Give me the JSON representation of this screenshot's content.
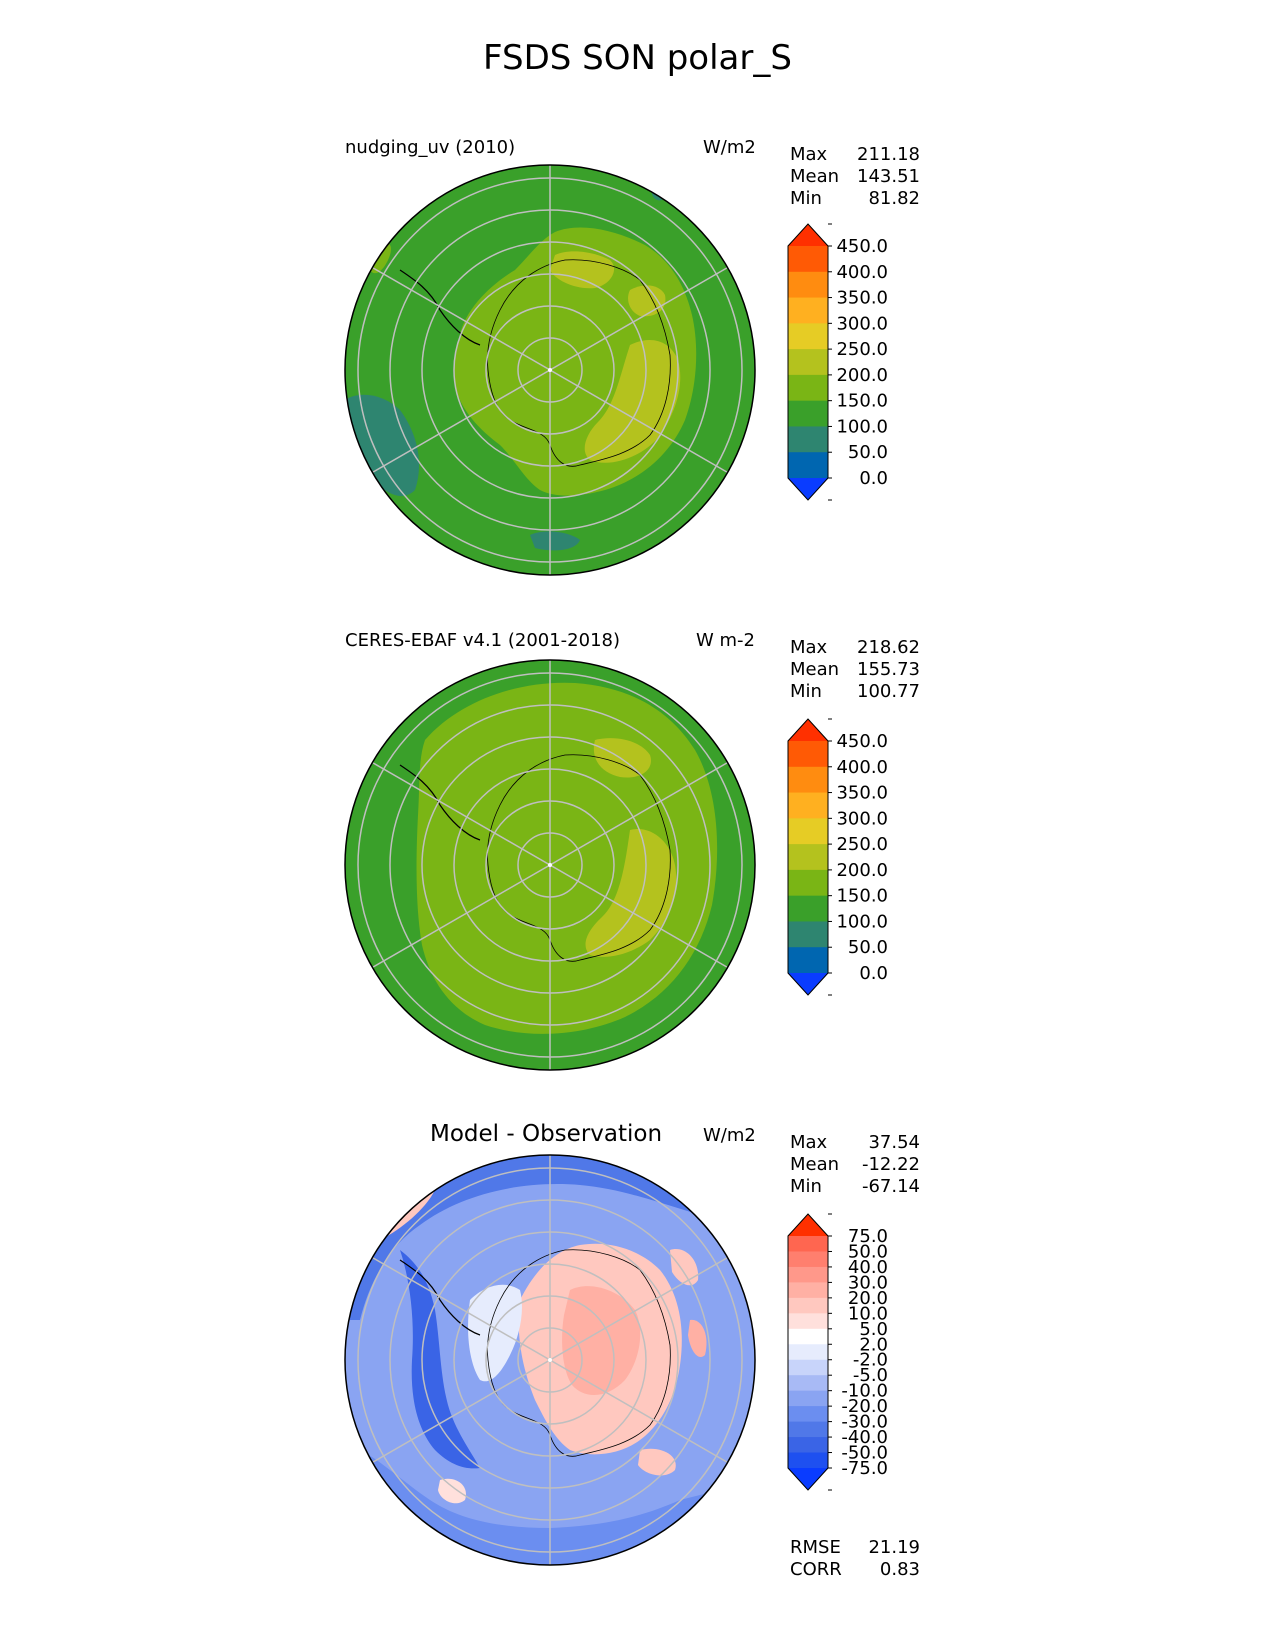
{
  "title": "FSDS SON polar_S",
  "panels": [
    {
      "left_label": "nudging_uv (2010)",
      "units": "W/m2",
      "stats": [
        {
          "label": "Max",
          "value": "211.18"
        },
        {
          "label": "Mean",
          "value": "143.51"
        },
        {
          "label": "Min",
          "value": "81.82"
        }
      ]
    },
    {
      "left_label": "CERES-EBAF v4.1 (2001-2018)",
      "units": "W m-2",
      "stats": [
        {
          "label": "Max",
          "value": "218.62"
        },
        {
          "label": "Mean",
          "value": "155.73"
        },
        {
          "label": "Min",
          "value": "100.77"
        }
      ]
    },
    {
      "left_label": "Model - Observation",
      "units": "W/m2",
      "stats": [
        {
          "label": "Max",
          "value": "37.54"
        },
        {
          "label": "Mean",
          "value": "-12.22"
        },
        {
          "label": "Min",
          "value": "-67.14"
        }
      ],
      "footer": [
        {
          "label": "RMSE",
          "value": "21.19"
        },
        {
          "label": "CORR",
          "value": "0.83"
        }
      ]
    }
  ],
  "chart_data": [
    {
      "type": "heatmap",
      "projection": "south-polar-stereographic",
      "colorbar": {
        "levels": [
          "0.0",
          "50.0",
          "100.0",
          "150.0",
          "200.0",
          "250.0",
          "300.0",
          "350.0",
          "400.0",
          "450.0"
        ],
        "colors": [
          "#0a3cff",
          "#0066b0",
          "#2e8570",
          "#3aa02a",
          "#7ab515",
          "#b4c21e",
          "#e6cc25",
          "#ffb020",
          "#ff8c10",
          "#ff5a05",
          "#ff3000"
        ]
      }
    },
    {
      "type": "heatmap",
      "projection": "south-polar-stereographic",
      "colorbar": {
        "levels": [
          "0.0",
          "50.0",
          "100.0",
          "150.0",
          "200.0",
          "250.0",
          "300.0",
          "350.0",
          "400.0",
          "450.0"
        ],
        "colors": [
          "#0a3cff",
          "#0066b0",
          "#2e8570",
          "#3aa02a",
          "#7ab515",
          "#b4c21e",
          "#e6cc25",
          "#ffb020",
          "#ff8c10",
          "#ff5a05",
          "#ff3000"
        ]
      }
    },
    {
      "type": "heatmap",
      "projection": "south-polar-stereographic",
      "colorbar": {
        "levels": [
          "-75.0",
          "-50.0",
          "-40.0",
          "-30.0",
          "-20.0",
          "-10.0",
          "-5.0",
          "-2.0",
          "2.0",
          "5.0",
          "10.0",
          "20.0",
          "30.0",
          "40.0",
          "50.0",
          "75.0"
        ],
        "colors": [
          "#0a3cff",
          "#1e50f0",
          "#3a64e6",
          "#5078e8",
          "#6b8ef0",
          "#8aa4f2",
          "#a8baf5",
          "#c8d4fa",
          "#e6ecfd",
          "#ffffff",
          "#ffe0dc",
          "#ffc8bf",
          "#ffb0a4",
          "#ff988a",
          "#ff7f6e",
          "#ff6650",
          "#ff3000"
        ]
      }
    }
  ]
}
